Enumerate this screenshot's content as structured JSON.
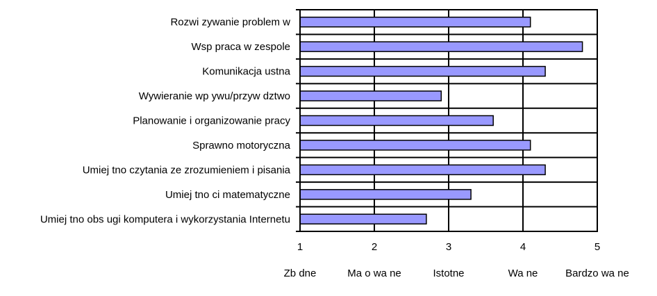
{
  "chart_data": {
    "type": "bar",
    "orientation": "horizontal",
    "categories": [
      "Rozwi zywanie problem w",
      "Wsp praca w zespole",
      "Komunikacja ustna",
      "Wywieranie wp ywu/przyw dztwo",
      "Planowanie i organizowanie pracy",
      "Sprawno motoryczna",
      "Umiej tno czytania ze zrozumieniem i pisania",
      "Umiej tno ci matematyczne",
      "Umiej tno obs ugi komputera i wykorzystania Internetu"
    ],
    "values": [
      4.1,
      4.8,
      4.3,
      2.9,
      3.6,
      4.1,
      4.3,
      3.3,
      2.7
    ],
    "xlim": [
      1,
      5
    ],
    "x_ticks": [
      1,
      2,
      3,
      4,
      5
    ],
    "scale_labels": [
      "Zb dne",
      "Ma o wa ne",
      "Istotne",
      "Wa ne",
      "Bardzo wa ne"
    ],
    "grid": "vertical",
    "colors": {
      "bar_fill": "#9999ff",
      "bar_stroke": "#000000",
      "grid": "#000000"
    }
  }
}
